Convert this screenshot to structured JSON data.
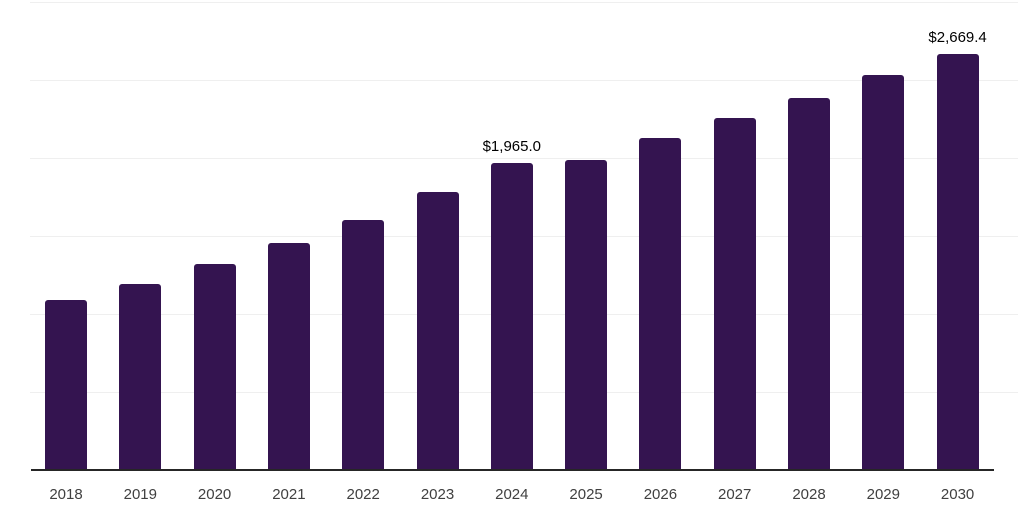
{
  "chart_data": {
    "type": "bar",
    "title": "",
    "categories": [
      "2018",
      "2019",
      "2020",
      "2021",
      "2022",
      "2023",
      "2024",
      "2025",
      "2026",
      "2027",
      "2028",
      "2029",
      "2030"
    ],
    "values": [
      1090,
      1195,
      1320,
      1455,
      1605,
      1785,
      1965.0,
      1985,
      2130,
      2255,
      2385,
      2535,
      2669.4
    ],
    "data_labels": {
      "2024": "$1,965.0",
      "2030": "$2,669.4"
    },
    "xlabel": "",
    "ylabel": "",
    "ylim": [
      0,
      3000
    ],
    "gridline_step": 500,
    "grid": true,
    "legend": false,
    "y_axis_tick_labels_visible": false,
    "colors": {
      "bar": "#341450",
      "axis_line": "#262626",
      "gridline": "#efefef",
      "data_label": "#000000",
      "tick_label": "#404040",
      "background": "#ffffff"
    }
  }
}
